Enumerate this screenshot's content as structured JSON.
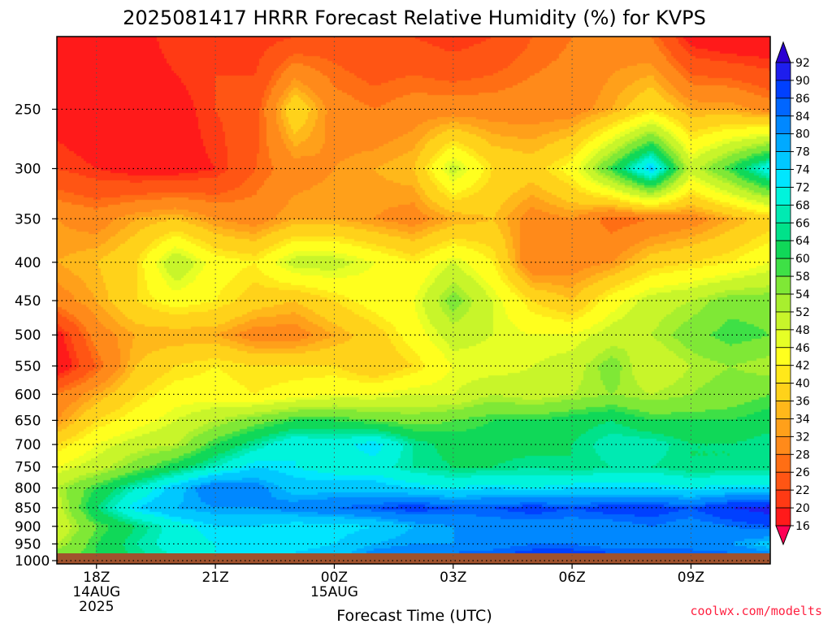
{
  "chart_data": {
    "type": "heatmap",
    "title": "2025081417 HRRR Forecast Relative Humidity (%) for KVPS",
    "xlabel": "Forecast Time (UTC)",
    "ylabel": "",
    "x_ticks": [
      {
        "hour": 0,
        "lines": [
          "18Z",
          "14AUG",
          "2025"
        ]
      },
      {
        "hour": 3,
        "lines": [
          "21Z"
        ]
      },
      {
        "hour": 6,
        "lines": [
          "00Z",
          "15AUG"
        ]
      },
      {
        "hour": 9,
        "lines": [
          "03Z"
        ]
      },
      {
        "hour": 12,
        "lines": [
          "06Z"
        ]
      },
      {
        "hour": 15,
        "lines": [
          "09Z"
        ]
      }
    ],
    "x_hours": [
      -1,
      0,
      1,
      2,
      3,
      4,
      5,
      6,
      7,
      8,
      9,
      10,
      11,
      12,
      13,
      14,
      15,
      16,
      17
    ],
    "pressure_levels": [
      200,
      250,
      300,
      350,
      400,
      450,
      500,
      550,
      600,
      650,
      700,
      750,
      800,
      850,
      900,
      950,
      1000
    ],
    "y_ticks": [
      250,
      300,
      350,
      400,
      450,
      500,
      550,
      600,
      650,
      700,
      750,
      800,
      850,
      900,
      950,
      1000
    ],
    "x_range_hours": [
      -1,
      17
    ],
    "y_range_hpa": [
      200,
      1010
    ],
    "y_scale": "log-pressure",
    "grid": true,
    "surface_band_color": "#a0522d",
    "rh_percent": [
      [
        20,
        16,
        18,
        22,
        22,
        20,
        22,
        24,
        22,
        22,
        20,
        22,
        26,
        28,
        30,
        28,
        18,
        16,
        16
      ],
      [
        18,
        16,
        16,
        18,
        22,
        24,
        40,
        30,
        28,
        30,
        30,
        30,
        30,
        30,
        34,
        40,
        34,
        34,
        30
      ],
      [
        22,
        20,
        18,
        18,
        20,
        26,
        30,
        32,
        34,
        36,
        50,
        40,
        38,
        44,
        60,
        76,
        50,
        60,
        72
      ],
      [
        32,
        30,
        34,
        36,
        32,
        30,
        34,
        34,
        32,
        30,
        34,
        36,
        30,
        32,
        26,
        28,
        30,
        34,
        38
      ],
      [
        34,
        36,
        40,
        52,
        44,
        42,
        50,
        50,
        46,
        42,
        48,
        42,
        28,
        30,
        32,
        38,
        40,
        42,
        46
      ],
      [
        30,
        34,
        40,
        44,
        42,
        38,
        36,
        40,
        44,
        46,
        56,
        48,
        40,
        36,
        44,
        50,
        52,
        56,
        56
      ],
      [
        18,
        30,
        34,
        34,
        34,
        30,
        30,
        34,
        38,
        44,
        50,
        48,
        46,
        46,
        50,
        52,
        56,
        60,
        58
      ],
      [
        16,
        26,
        36,
        40,
        42,
        40,
        40,
        40,
        36,
        40,
        46,
        46,
        48,
        50,
        56,
        48,
        52,
        54,
        52
      ],
      [
        28,
        34,
        40,
        44,
        44,
        42,
        44,
        46,
        46,
        48,
        48,
        52,
        50,
        52,
        54,
        52,
        54,
        56,
        58
      ],
      [
        32,
        40,
        44,
        48,
        52,
        56,
        60,
        60,
        58,
        56,
        58,
        60,
        60,
        62,
        64,
        60,
        60,
        60,
        62
      ],
      [
        40,
        46,
        50,
        52,
        60,
        66,
        72,
        70,
        74,
        66,
        62,
        62,
        62,
        64,
        68,
        68,
        64,
        64,
        66
      ],
      [
        46,
        50,
        56,
        62,
        68,
        74,
        72,
        70,
        70,
        66,
        64,
        64,
        66,
        64,
        66,
        66,
        64,
        64,
        64
      ],
      [
        52,
        60,
        68,
        76,
        84,
        82,
        76,
        76,
        76,
        74,
        72,
        74,
        72,
        74,
        74,
        74,
        72,
        74,
        74
      ],
      [
        50,
        64,
        74,
        78,
        80,
        80,
        82,
        84,
        86,
        88,
        86,
        86,
        88,
        86,
        88,
        88,
        86,
        90,
        92
      ],
      [
        48,
        58,
        64,
        70,
        74,
        74,
        72,
        72,
        74,
        78,
        80,
        82,
        82,
        82,
        82,
        84,
        82,
        84,
        86
      ],
      [
        52,
        60,
        66,
        70,
        72,
        74,
        72,
        74,
        78,
        80,
        80,
        82,
        84,
        84,
        82,
        82,
        80,
        80,
        76
      ],
      [
        58,
        60,
        64,
        68,
        72,
        74,
        76,
        78,
        84,
        86,
        88,
        88,
        90,
        90,
        90,
        90,
        92,
        88,
        84
      ]
    ],
    "colorbar": {
      "levels": [
        16,
        20,
        22,
        26,
        28,
        32,
        34,
        36,
        40,
        42,
        46,
        48,
        52,
        54,
        58,
        60,
        64,
        66,
        68,
        72,
        74,
        78,
        80,
        84,
        86,
        90,
        92
      ],
      "colors": [
        "#ff0055",
        "#ff1a1a",
        "#ff3a14",
        "#ff5514",
        "#ff6e14",
        "#ff8a1a",
        "#ffa01a",
        "#ffb81a",
        "#ffd21a",
        "#ffe81a",
        "#ffff1e",
        "#e6ff26",
        "#c8f52a",
        "#a8ef2e",
        "#7fe836",
        "#3ee046",
        "#10d858",
        "#00e28a",
        "#00eab2",
        "#00f4dc",
        "#00e6ff",
        "#00c8ff",
        "#00aaff",
        "#0088ff",
        "#0066ff",
        "#0040ff",
        "#1e1eee",
        "#2a00d2"
      ]
    }
  },
  "credit": "coolwx.com/modelts"
}
